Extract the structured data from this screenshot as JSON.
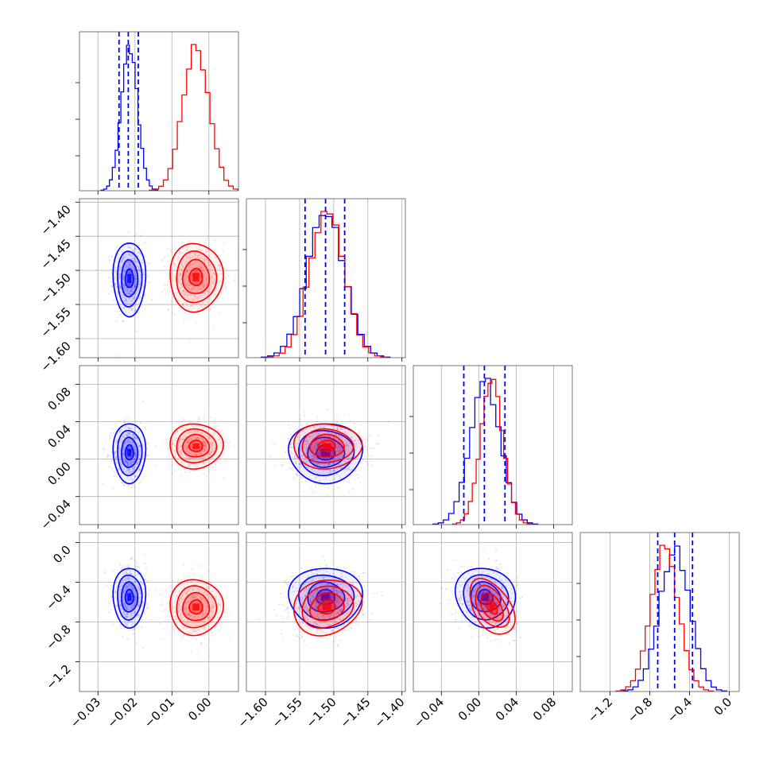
{
  "chart_data": {
    "type": "corner",
    "parameters": [
      {
        "range": [
          -0.035,
          0.008
        ],
        "ticks": [
          -0.03,
          -0.02,
          -0.01,
          0.0
        ],
        "tick_labels": [
          "−0.03",
          "−0.02",
          "−0.01",
          "0.00"
        ]
      },
      {
        "range": [
          -1.628,
          -1.395
        ],
        "ticks": [
          -1.6,
          -1.55,
          -1.5,
          -1.45,
          -1.4
        ],
        "tick_labels": [
          "−1.60",
          "−1.55",
          "−1.50",
          "−1.45",
          "−1.40"
        ]
      },
      {
        "range": [
          -0.07,
          0.1
        ],
        "ticks": [
          -0.04,
          0.0,
          0.04,
          0.08
        ],
        "tick_labels": [
          "−0.04",
          "0.00",
          "0.04",
          "0.08"
        ]
      },
      {
        "range": [
          -1.5,
          0.1
        ],
        "ticks": [
          -1.2,
          -0.8,
          -0.4,
          0.0
        ],
        "tick_labels": [
          "−1.2",
          "−0.8",
          "−0.4",
          "0.0"
        ]
      }
    ],
    "series": [
      {
        "color": "#0000ff",
        "mean": [
          -0.0215,
          -1.512,
          0.007,
          -0.55
        ],
        "sd": [
          0.0022,
          0.027,
          0.016,
          0.15
        ],
        "rho": {
          "0-1": 0.0,
          "0-2": 0.0,
          "0-3": 0.0,
          "1-2": 0.0,
          "1-3": 0.0,
          "2-3": -0.1
        },
        "quantiles": [
          [
            -0.0243,
            -0.0218,
            -0.0191
          ],
          [
            -1.542,
            -1.512,
            -1.484
          ],
          [
            -0.016,
            0.006,
            0.028
          ],
          [
            -0.72,
            -0.55,
            -0.37
          ]
        ]
      },
      {
        "color": "#ff0000",
        "mean": [
          -0.0035,
          -1.51,
          0.014,
          -0.65
        ],
        "sd": [
          0.0036,
          0.025,
          0.012,
          0.14
        ],
        "rho": {
          "0-1": 0.0,
          "0-2": 0.0,
          "0-3": 0.0,
          "1-2": 0.0,
          "1-3": 0.15,
          "2-3": -0.45
        }
      }
    ],
    "grid": true,
    "quantile_line_style": "dashed"
  }
}
